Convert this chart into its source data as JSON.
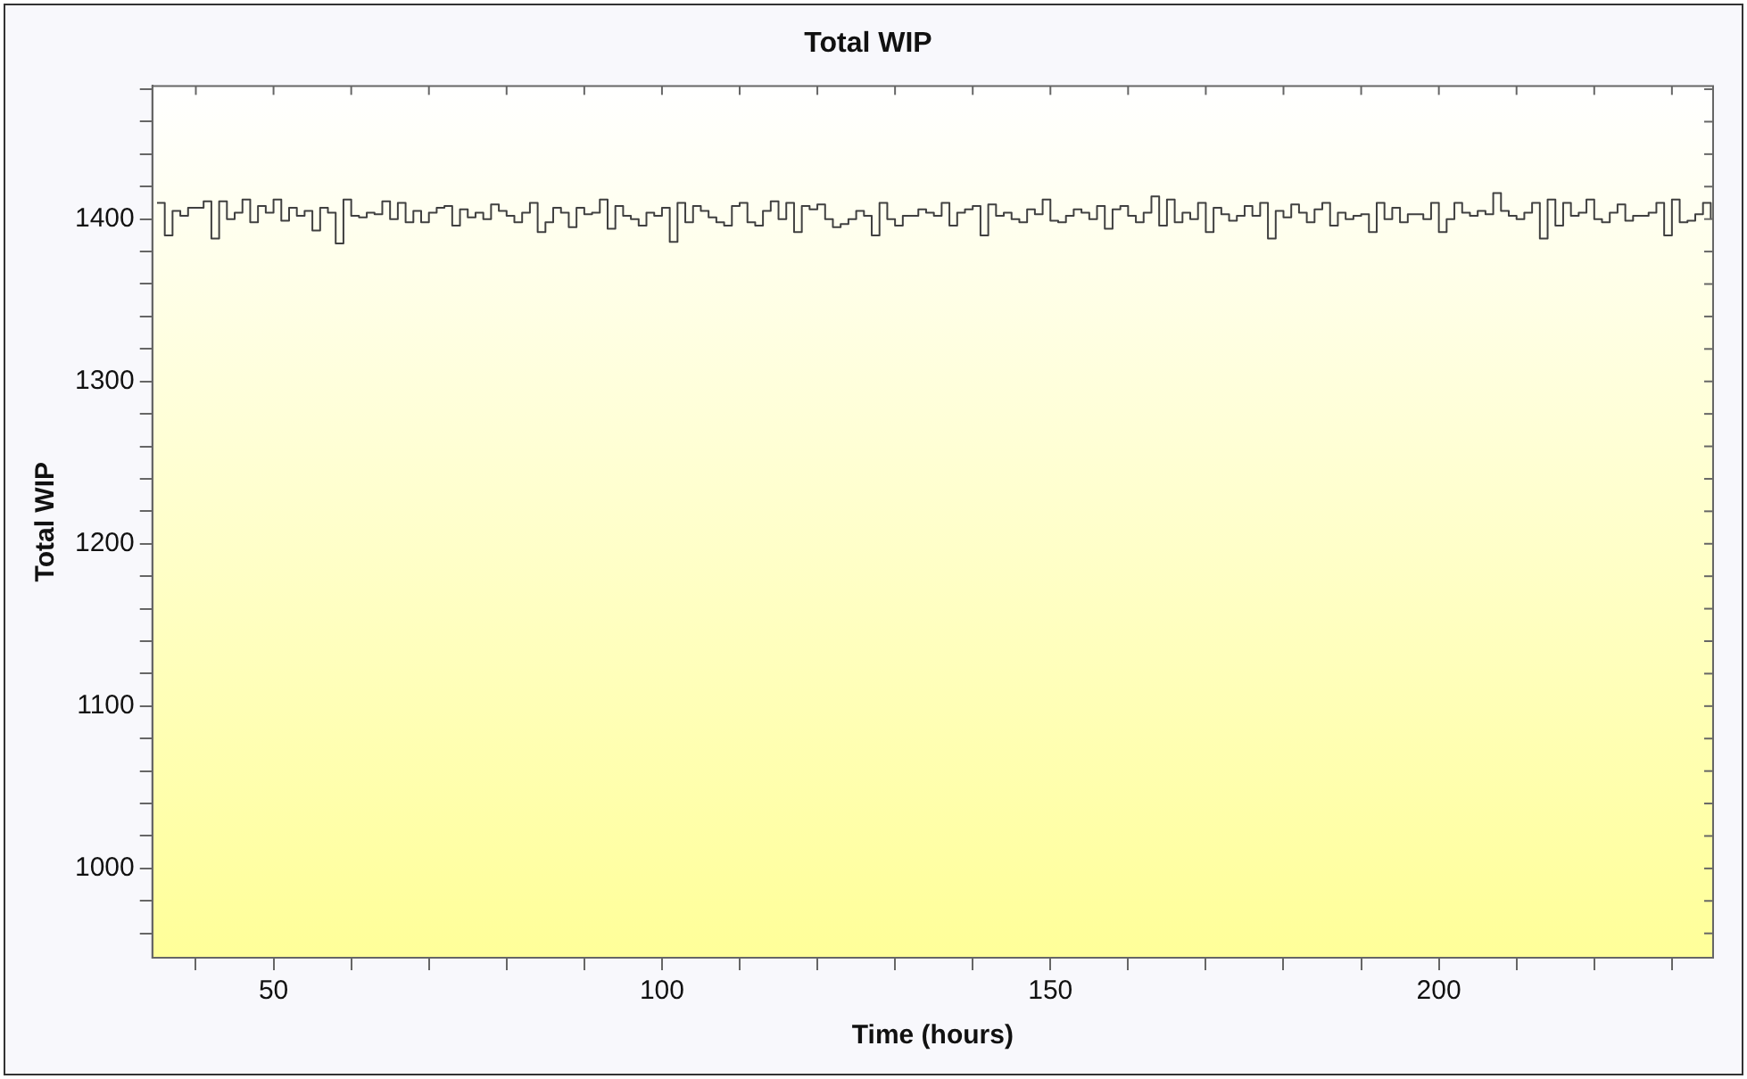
{
  "chart_data": {
    "type": "step",
    "title": "Total WIP",
    "xlabel": "Time (hours)",
    "ylabel": "Total WIP",
    "x": [
      35,
      36,
      37,
      38,
      39,
      40,
      41,
      42,
      43,
      44,
      45,
      46,
      47,
      48,
      49,
      50,
      51,
      52,
      53,
      54,
      55,
      56,
      57,
      58,
      59,
      60,
      61,
      62,
      63,
      64,
      65,
      66,
      67,
      68,
      69,
      70,
      71,
      72,
      73,
      74,
      75,
      76,
      77,
      78,
      79,
      80,
      81,
      82,
      83,
      84,
      85,
      86,
      87,
      88,
      89,
      90,
      91,
      92,
      93,
      94,
      95,
      96,
      97,
      98,
      99,
      100,
      101,
      102,
      103,
      104,
      105,
      106,
      107,
      108,
      109,
      110,
      111,
      112,
      113,
      114,
      115,
      116,
      117,
      118,
      119,
      120,
      121,
      122,
      123,
      124,
      125,
      126,
      127,
      128,
      129,
      130,
      131,
      132,
      133,
      134,
      135,
      136,
      137,
      138,
      139,
      140,
      141,
      142,
      143,
      144,
      145,
      146,
      147,
      148,
      149,
      150,
      151,
      152,
      153,
      154,
      155,
      156,
      157,
      158,
      159,
      160,
      161,
      162,
      163,
      164,
      165,
      166,
      167,
      168,
      169,
      170,
      171,
      172,
      173,
      174,
      175,
      176,
      177,
      178,
      179,
      180,
      181,
      182,
      183,
      184,
      185,
      186,
      187,
      188,
      189,
      190,
      191,
      192,
      193,
      194,
      195,
      196,
      197,
      198,
      199,
      200,
      201,
      202,
      203,
      204,
      205,
      206,
      207,
      208,
      209,
      210,
      211,
      212,
      213,
      214,
      215,
      216,
      217,
      218,
      219,
      220,
      221,
      222,
      223,
      224,
      225,
      226,
      227,
      228,
      229,
      230,
      231,
      232,
      233,
      234,
      235
    ],
    "series": [
      {
        "color": "#404040",
        "values": [
          1410,
          1390,
          1405,
          1402,
          1407,
          1407,
          1411,
          1388,
          1411,
          1400,
          1404,
          1412,
          1398,
          1408,
          1404,
          1412,
          1399,
          1407,
          1402,
          1405,
          1393,
          1407,
          1404,
          1385,
          1412,
          1402,
          1401,
          1404,
          1403,
          1411,
          1400,
          1410,
          1398,
          1405,
          1398,
          1404,
          1407,
          1408,
          1396,
          1406,
          1401,
          1404,
          1400,
          1409,
          1405,
          1402,
          1398,
          1404,
          1410,
          1392,
          1398,
          1407,
          1404,
          1395,
          1407,
          1403,
          1404,
          1412,
          1394,
          1408,
          1402,
          1400,
          1396,
          1404,
          1402,
          1407,
          1386,
          1410,
          1398,
          1408,
          1405,
          1401,
          1398,
          1396,
          1408,
          1410,
          1398,
          1396,
          1405,
          1411,
          1400,
          1410,
          1392,
          1408,
          1406,
          1409,
          1400,
          1395,
          1397,
          1400,
          1405,
          1402,
          1390,
          1410,
          1400,
          1396,
          1402,
          1402,
          1406,
          1404,
          1402,
          1410,
          1396,
          1404,
          1406,
          1408,
          1390,
          1409,
          1402,
          1404,
          1400,
          1398,
          1406,
          1403,
          1412,
          1399,
          1398,
          1402,
          1406,
          1404,
          1400,
          1408,
          1394,
          1406,
          1408,
          1402,
          1398,
          1404,
          1414,
          1396,
          1412,
          1398,
          1404,
          1400,
          1410,
          1392,
          1407,
          1403,
          1399,
          1402,
          1408,
          1402,
          1410,
          1388,
          1405,
          1401,
          1409,
          1404,
          1398,
          1406,
          1410,
          1396,
          1404,
          1400,
          1402,
          1403,
          1392,
          1410,
          1400,
          1407,
          1398,
          1403,
          1403,
          1400,
          1410,
          1392,
          1400,
          1410,
          1404,
          1402,
          1405,
          1403,
          1416,
          1405,
          1402,
          1400,
          1404,
          1410,
          1388,
          1412,
          1396,
          1410,
          1402,
          1404,
          1412,
          1400,
          1398,
          1404,
          1409,
          1399,
          1402,
          1402,
          1404,
          1410,
          1390,
          1412,
          1398,
          1399,
          1403,
          1410,
          1400
        ]
      }
    ],
    "xlim": [
      34.4,
      235.3
    ],
    "ylim": [
      945,
      1482
    ],
    "xticks": [
      {
        "value": 40,
        "label": null
      },
      50,
      {
        "value": 60,
        "label": null
      },
      {
        "value": 70,
        "label": null
      },
      {
        "value": 80,
        "label": null
      },
      {
        "value": 90,
        "label": null
      },
      100,
      {
        "value": 110,
        "label": null
      },
      {
        "value": 120,
        "label": null
      },
      {
        "value": 130,
        "label": null
      },
      {
        "value": 140,
        "label": null
      },
      150,
      {
        "value": 160,
        "label": null
      },
      {
        "value": 170,
        "label": null
      },
      {
        "value": 180,
        "label": null
      },
      {
        "value": 190,
        "label": null
      },
      200,
      {
        "value": 210,
        "label": null
      },
      {
        "value": 220,
        "label": null
      },
      {
        "value": 230,
        "label": null
      }
    ],
    "yticks": [
      {
        "value": 960,
        "label": null
      },
      {
        "value": 980,
        "label": null
      },
      1000,
      {
        "value": 1020,
        "label": null
      },
      {
        "value": 1040,
        "label": null
      },
      {
        "value": 1060,
        "label": null
      },
      {
        "value": 1080,
        "label": null
      },
      1100,
      {
        "value": 1120,
        "label": null
      },
      {
        "value": 1140,
        "label": null
      },
      {
        "value": 1160,
        "label": null
      },
      {
        "value": 1180,
        "label": null
      },
      1200,
      {
        "value": 1220,
        "label": null
      },
      {
        "value": 1240,
        "label": null
      },
      {
        "value": 1260,
        "label": null
      },
      {
        "value": 1280,
        "label": null
      },
      1300,
      {
        "value": 1320,
        "label": null
      },
      {
        "value": 1340,
        "label": null
      },
      {
        "value": 1360,
        "label": null
      },
      {
        "value": 1380,
        "label": null
      },
      1400,
      {
        "value": 1420,
        "label": null
      },
      {
        "value": 1440,
        "label": null
      },
      {
        "value": 1460,
        "label": null
      },
      {
        "value": 1480,
        "label": null
      }
    ],
    "grid": false,
    "legend": false,
    "marker": "none",
    "line_style": "solid"
  }
}
